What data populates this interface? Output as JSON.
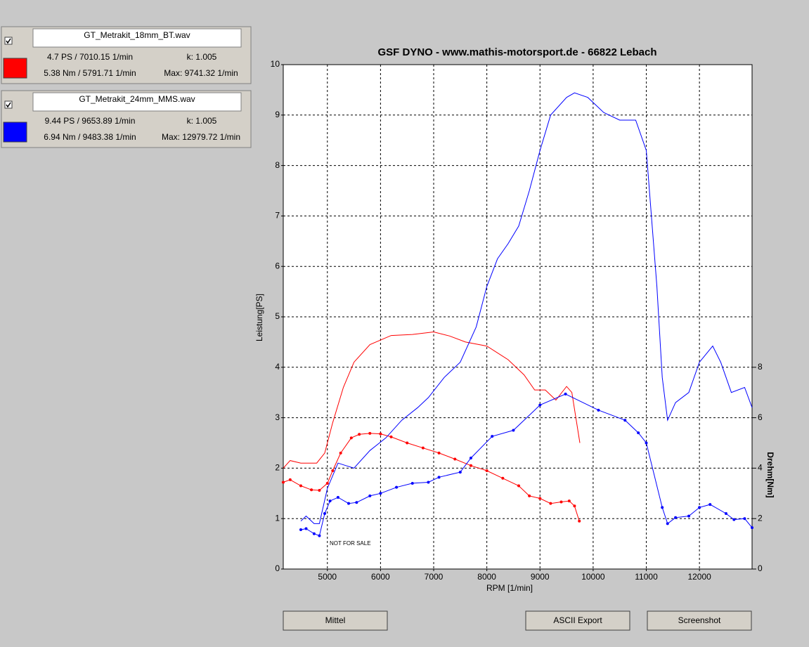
{
  "panels": [
    {
      "checked": true,
      "file": "GT_Metrakit_18mm_BT.wav",
      "color": "#ff0000",
      "power": "4.7 PS / 7010.15 1/min",
      "k": "k: 1.005",
      "torque": "5.38 Nm / 5791.71 1/min",
      "max": "Max: 9741.32 1/min"
    },
    {
      "checked": true,
      "file": "GT_Metrakit_24mm_MMS.wav",
      "color": "#0000ff",
      "power": "9.44 PS / 9653.89 1/min",
      "k": "k: 1.005",
      "torque": "6.94 Nm / 9483.38 1/min",
      "max": "Max: 12979.72 1/min"
    }
  ],
  "chart_data": {
    "type": "line",
    "title": "GSF DYNO - www.mathis-motorsport.de - 66822 Lebach",
    "x_label": "RPM [1/min]",
    "y_label": "Leistung[PS]",
    "y2_label": "Drehm[Nm]",
    "annotations": [
      "NOT FOR SALE"
    ],
    "xlim": [
      4170,
      12990
    ],
    "xticks": [
      5000,
      6000,
      7000,
      8000,
      9000,
      10000,
      11000,
      12000
    ],
    "ylim": [
      0,
      10
    ],
    "yticks": [
      0,
      1,
      2,
      3,
      4,
      5,
      6,
      7,
      8,
      9,
      10
    ],
    "y2lim": [
      0,
      20
    ],
    "y2ticks": [
      0,
      2,
      4,
      6,
      8
    ],
    "grid": true,
    "series": [
      {
        "color": "#ff0000",
        "markers": false,
        "x": [
          4170,
          4300,
          4500,
          4800,
          4950,
          5100,
          5300,
          5500,
          5800,
          6200,
          6600,
          7000,
          7300,
          7600,
          8000,
          8400,
          8700,
          8900,
          9100,
          9300,
          9500,
          9600,
          9750
        ],
        "values": [
          2.0,
          2.15,
          2.1,
          2.1,
          2.3,
          2.9,
          3.6,
          4.1,
          4.45,
          4.63,
          4.65,
          4.7,
          4.62,
          4.5,
          4.42,
          4.15,
          3.85,
          3.55,
          3.55,
          3.35,
          3.62,
          3.5,
          2.5
        ]
      },
      {
        "color": "#ff0000",
        "markers": true,
        "axis": "y2",
        "x": [
          4170,
          4300,
          4500,
          4700,
          4850,
          5000,
          5100,
          5250,
          5450,
          5600,
          5800,
          6000,
          6200,
          6500,
          6800,
          7100,
          7400,
          7700,
          8000,
          8300,
          8600,
          8800,
          9000,
          9200,
          9400,
          9550,
          9650,
          9740
        ],
        "values": [
          3.44,
          3.54,
          3.3,
          3.14,
          3.12,
          3.4,
          3.9,
          4.6,
          5.2,
          5.34,
          5.38,
          5.36,
          5.24,
          5.0,
          4.8,
          4.6,
          4.36,
          4.1,
          3.9,
          3.6,
          3.3,
          2.9,
          2.8,
          2.6,
          2.66,
          2.7,
          2.5,
          1.9
        ]
      },
      {
        "color": "#0000ff",
        "markers": false,
        "x": [
          4500,
          4600,
          4750,
          4850,
          5000,
          5200,
          5350,
          5500,
          5800,
          6100,
          6400,
          6700,
          6900,
          7200,
          7500,
          7800,
          8000,
          8200,
          8400,
          8600,
          8800,
          9000,
          9200,
          9500,
          9650,
          9900,
          10200,
          10500,
          10800,
          11000,
          11200,
          11300,
          11400,
          11550,
          11800,
          12000,
          12250,
          12400,
          12600,
          12850,
          12990
        ],
        "values": [
          0.95,
          1.05,
          0.9,
          0.9,
          1.6,
          2.1,
          2.05,
          2.0,
          2.35,
          2.6,
          2.95,
          3.2,
          3.4,
          3.8,
          4.1,
          4.8,
          5.6,
          6.15,
          6.45,
          6.8,
          7.5,
          8.3,
          9.0,
          9.35,
          9.44,
          9.35,
          9.05,
          8.9,
          8.9,
          8.3,
          5.6,
          3.8,
          2.95,
          3.3,
          3.5,
          4.1,
          4.42,
          4.1,
          3.5,
          3.6,
          3.2
        ]
      },
      {
        "color": "#0000ff",
        "markers": true,
        "axis": "y2",
        "x": [
          4500,
          4600,
          4750,
          4850,
          4950,
          5050,
          5200,
          5400,
          5550,
          5800,
          6000,
          6300,
          6600,
          6900,
          7100,
          7500,
          7700,
          8100,
          8500,
          9000,
          9480,
          10100,
          10600,
          10850,
          11000,
          11300,
          11400,
          11550,
          11800,
          12000,
          12200,
          12500,
          12650,
          12850,
          12990
        ],
        "values": [
          1.56,
          1.6,
          1.4,
          1.32,
          2.2,
          2.7,
          2.84,
          2.6,
          2.64,
          2.9,
          3.0,
          3.24,
          3.4,
          3.44,
          3.64,
          3.84,
          4.4,
          5.26,
          5.5,
          6.5,
          6.94,
          6.3,
          5.9,
          5.4,
          5.0,
          2.44,
          1.8,
          2.04,
          2.1,
          2.44,
          2.56,
          2.2,
          1.96,
          2.0,
          1.64
        ]
      }
    ]
  },
  "buttons": [
    "Mittel",
    "ASCII Export",
    "Screenshot"
  ]
}
